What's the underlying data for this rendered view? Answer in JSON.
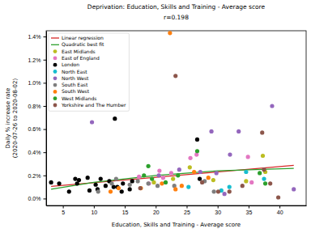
{
  "chart_data": {
    "type": "scatter",
    "title": "Deprivation: Education, Skills and Training - Average score",
    "subtitle": "r=0.198",
    "x_label": "Education, Skills and Training - Average score",
    "y_label": "Daily % increase rate\n(2020-07-26 to 2020-08-02)",
    "xlim": [
      2.3,
      44.3
    ],
    "ylim": [
      -0.06,
      1.45
    ],
    "xticks": [
      5,
      10,
      15,
      20,
      25,
      30,
      35,
      40
    ],
    "yticks": [
      {
        "value": 0,
        "label": "0.0%"
      },
      {
        "value": 0.2,
        "label": "0.2%"
      },
      {
        "value": 0.4,
        "label": "0.4%"
      },
      {
        "value": 0.6,
        "label": "0.6%"
      },
      {
        "value": 0.8,
        "label": "0.8%"
      },
      {
        "value": 1.0,
        "label": "1.0%"
      },
      {
        "value": 1.2,
        "label": "1.2%"
      },
      {
        "value": 1.4,
        "label": "1.4%"
      }
    ],
    "grid": false,
    "legend": "upper left",
    "series": [
      {
        "name": "Linear regression",
        "type": "line",
        "color": "#d62728",
        "line_style": "solid",
        "x": [
          3.1,
          42.3
        ],
        "values": [
          0.105,
          0.287
        ]
      },
      {
        "name": "Quadratic best fit",
        "type": "line",
        "color": "#2ca02c",
        "line_style": "solid",
        "x": [
          3.1,
          10,
          20,
          30,
          42.3
        ],
        "values": [
          0.08,
          0.14,
          0.2,
          0.24,
          0.26
        ]
      },
      {
        "name": "East Midlands",
        "type": "scatter",
        "marker": "circle",
        "color": "#bcbd22",
        "x": [
          25.5,
          37.3,
          37.7,
          34.6,
          19.7,
          22.8,
          29.3
        ],
        "values": [
          0.27,
          0.37,
          0.23,
          0.15,
          0.14,
          0.17,
          0.16
        ]
      },
      {
        "name": "East of England",
        "type": "scatter",
        "marker": "circle",
        "color": "#e377c2",
        "x": [
          18.9,
          21.2,
          22.5,
          26.6,
          34.9,
          35.5,
          17.3,
          20.6,
          25.6
        ],
        "values": [
          0.13,
          0.18,
          0.22,
          0.38,
          0.36,
          0.14,
          0.19,
          0.24,
          0.35
        ]
      },
      {
        "name": "London",
        "type": "scatter",
        "marker": "circle",
        "color": "#000000",
        "x": [
          3.1,
          4.4,
          6.0,
          7.0,
          7.6,
          7.3,
          9.0,
          9.3,
          10.3,
          11.1,
          10.6,
          11.9,
          12.5,
          13.2,
          13.4,
          13.8,
          14.5,
          14.7,
          16.2,
          15.8,
          26.7,
          27.1
        ],
        "values": [
          0.14,
          0.13,
          0.06,
          0.17,
          0.16,
          0.13,
          0.18,
          0.07,
          0.12,
          0.17,
          0.08,
          0.11,
          0.15,
          0.1,
          0.69,
          0.1,
          0.06,
          0.13,
          0.15,
          0.08,
          0.51,
          0.17
        ]
      },
      {
        "name": "North East",
        "type": "scatter",
        "marker": "circle",
        "color": "#17becf",
        "x": [
          37.5,
          31.9,
          30.6,
          25.3,
          34.6
        ],
        "values": [
          0.17,
          0.1,
          0.07,
          0.1,
          0.23
        ]
      },
      {
        "name": "North West",
        "type": "scatter",
        "marker": "circle",
        "color": "#9467bd",
        "x": [
          9.7,
          20.5,
          23.8,
          27.2,
          29.8,
          32.0,
          33.4,
          29.0,
          38.8,
          42.3,
          31.1
        ],
        "values": [
          0.66,
          0.2,
          0.25,
          0.23,
          0.22,
          0.38,
          0.58,
          0.58,
          0.8,
          0.08,
          0.04
        ]
      },
      {
        "name": "South East",
        "type": "scatter",
        "marker": "circle",
        "color": "#7f7f7f",
        "x": [
          10.7,
          13.6,
          15.8,
          17.1,
          18.8,
          20.3,
          23.0,
          29.4,
          12.9,
          27.9
        ],
        "values": [
          0.06,
          0.17,
          0.12,
          0.15,
          0.13,
          0.11,
          0.11,
          0.06,
          0.13,
          0.15
        ]
      },
      {
        "name": "South West",
        "type": "scatter",
        "marker": "circle",
        "color": "#ff7f0e",
        "x": [
          22.3,
          17.6,
          12.7,
          21.0,
          23.2,
          26.2,
          28.5,
          14.0,
          24.2
        ],
        "values": [
          1.43,
          0.09,
          0.06,
          0.13,
          0.08,
          0.23,
          0.18,
          0.09,
          0.11
        ]
      },
      {
        "name": "West Midlands",
        "type": "scatter",
        "marker": "circle",
        "color": "#2ca02c",
        "x": [
          18.8,
          19.4,
          21.6,
          26.7,
          36.8,
          37.7,
          23.6,
          18.1
        ],
        "values": [
          0.28,
          0.17,
          0.14,
          0.41,
          0.22,
          0.13,
          0.2,
          0.2
        ]
      },
      {
        "name": "Yorkshire and The Humber",
        "type": "scatter",
        "marker": "circle",
        "color": "#8c564b",
        "x": [
          23.2,
          37.2,
          37.5,
          34.0,
          38.5,
          27.5,
          30.1,
          39.8,
          31.9,
          17.5
        ],
        "values": [
          1.06,
          0.57,
          0.25,
          0.11,
          0.13,
          0.14,
          0.06,
          0.01,
          0.06,
          0.09
        ]
      }
    ]
  }
}
